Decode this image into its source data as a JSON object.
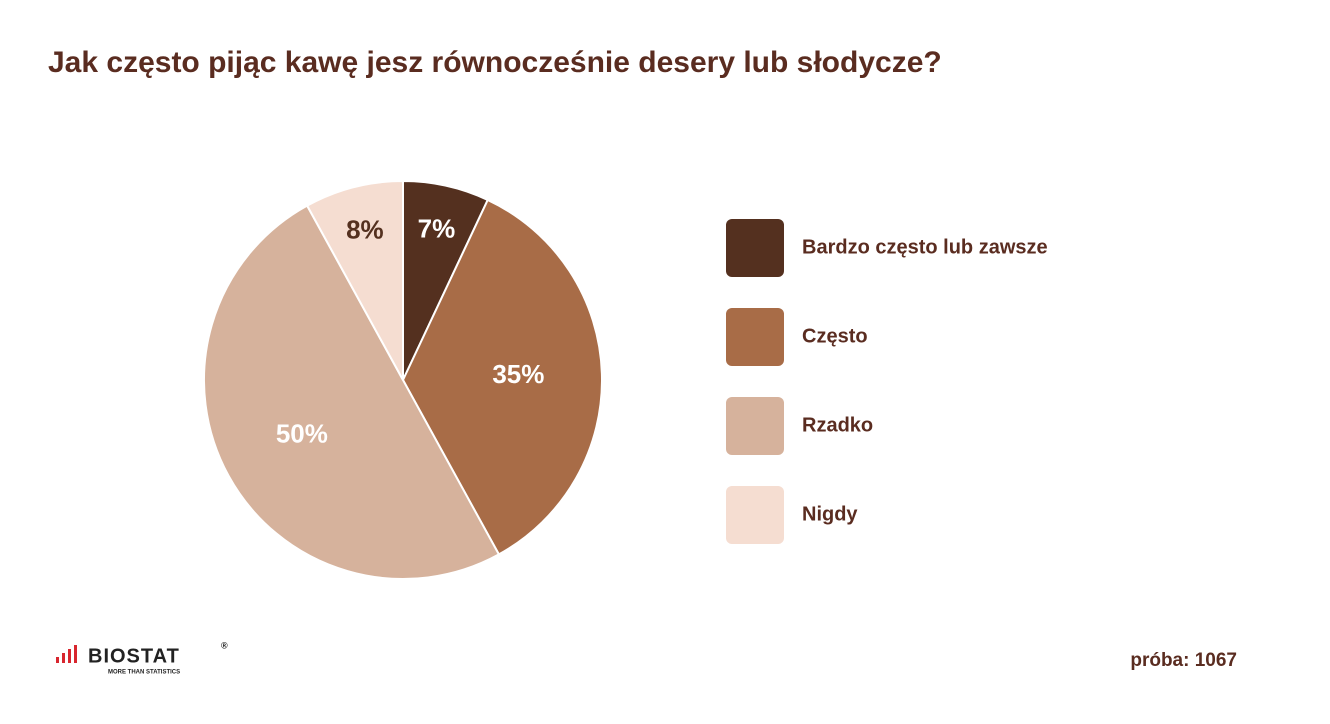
{
  "chart_data": {
    "type": "pie",
    "title": "Jak często pijąc kawę jesz równocześnie desery lub słodycze?",
    "categories": [
      "Bardzo często lub zawsze",
      "Często",
      "Rzadko",
      "Nigdy"
    ],
    "values": [
      7,
      35,
      50,
      8
    ],
    "value_labels": [
      "7%",
      "35%",
      "50%",
      "8%"
    ],
    "colors": [
      "#54301f",
      "#a86c47",
      "#d6b29c",
      "#f5ddd1"
    ],
    "sample": "próba: 1067"
  },
  "footer": {
    "logo": "BIOSTAT",
    "logo_mark": "®",
    "tagline": "MORE THAN STATISTICS"
  }
}
